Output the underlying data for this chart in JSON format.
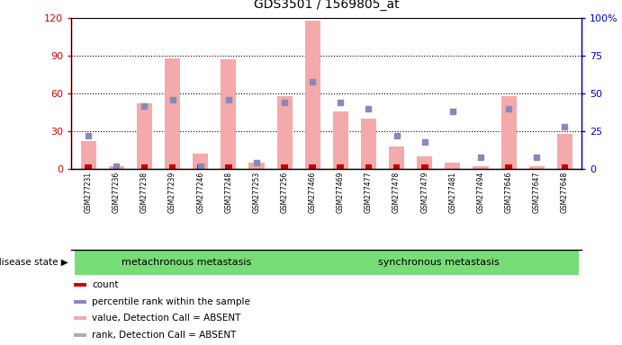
{
  "title": "GDS3501 / 1569805_at",
  "samples": [
    "GSM277231",
    "GSM277236",
    "GSM277238",
    "GSM277239",
    "GSM277246",
    "GSM277248",
    "GSM277253",
    "GSM277256",
    "GSM277466",
    "GSM277469",
    "GSM277477",
    "GSM277478",
    "GSM277479",
    "GSM277481",
    "GSM277494",
    "GSM277646",
    "GSM277647",
    "GSM277648"
  ],
  "groups": [
    {
      "label": "metachronous metastasis",
      "start": 0,
      "end": 7
    },
    {
      "label": "synchronous metastasis",
      "start": 8,
      "end": 17
    }
  ],
  "pink_bar_values": [
    22,
    2,
    52,
    88,
    12,
    87,
    5,
    58,
    118,
    46,
    40,
    18,
    10,
    5,
    2,
    58,
    2,
    28
  ],
  "blue_marker_values": [
    22,
    2,
    42,
    46,
    2,
    46,
    4,
    44,
    58,
    44,
    40,
    22,
    18,
    38,
    8,
    40,
    8,
    28
  ],
  "red_bar_values": [
    4,
    0,
    4,
    4,
    4,
    4,
    0,
    4,
    4,
    4,
    4,
    4,
    4,
    0,
    0,
    4,
    0,
    4
  ],
  "ylim_left": [
    0,
    120
  ],
  "ylim_right": [
    0,
    100
  ],
  "yticks_left": [
    0,
    30,
    60,
    90,
    120
  ],
  "yticks_right": [
    0,
    25,
    50,
    75,
    100
  ],
  "pink_color": "#F4AAAA",
  "blue_color": "#8888BB",
  "red_color": "#CC0000",
  "bg_color": "#CCCCCC",
  "group_color": "#77DD77",
  "axis_left_color": "#CC0000",
  "axis_right_color": "#0000CC",
  "disease_state_label": "disease state",
  "legend_items": [
    {
      "color": "#CC0000",
      "label": "count"
    },
    {
      "color": "#8888BB",
      "label": "percentile rank within the sample"
    },
    {
      "color": "#F4AAAA",
      "label": "value, Detection Call = ABSENT"
    },
    {
      "color": "#AAAACC",
      "label": "rank, Detection Call = ABSENT"
    }
  ]
}
